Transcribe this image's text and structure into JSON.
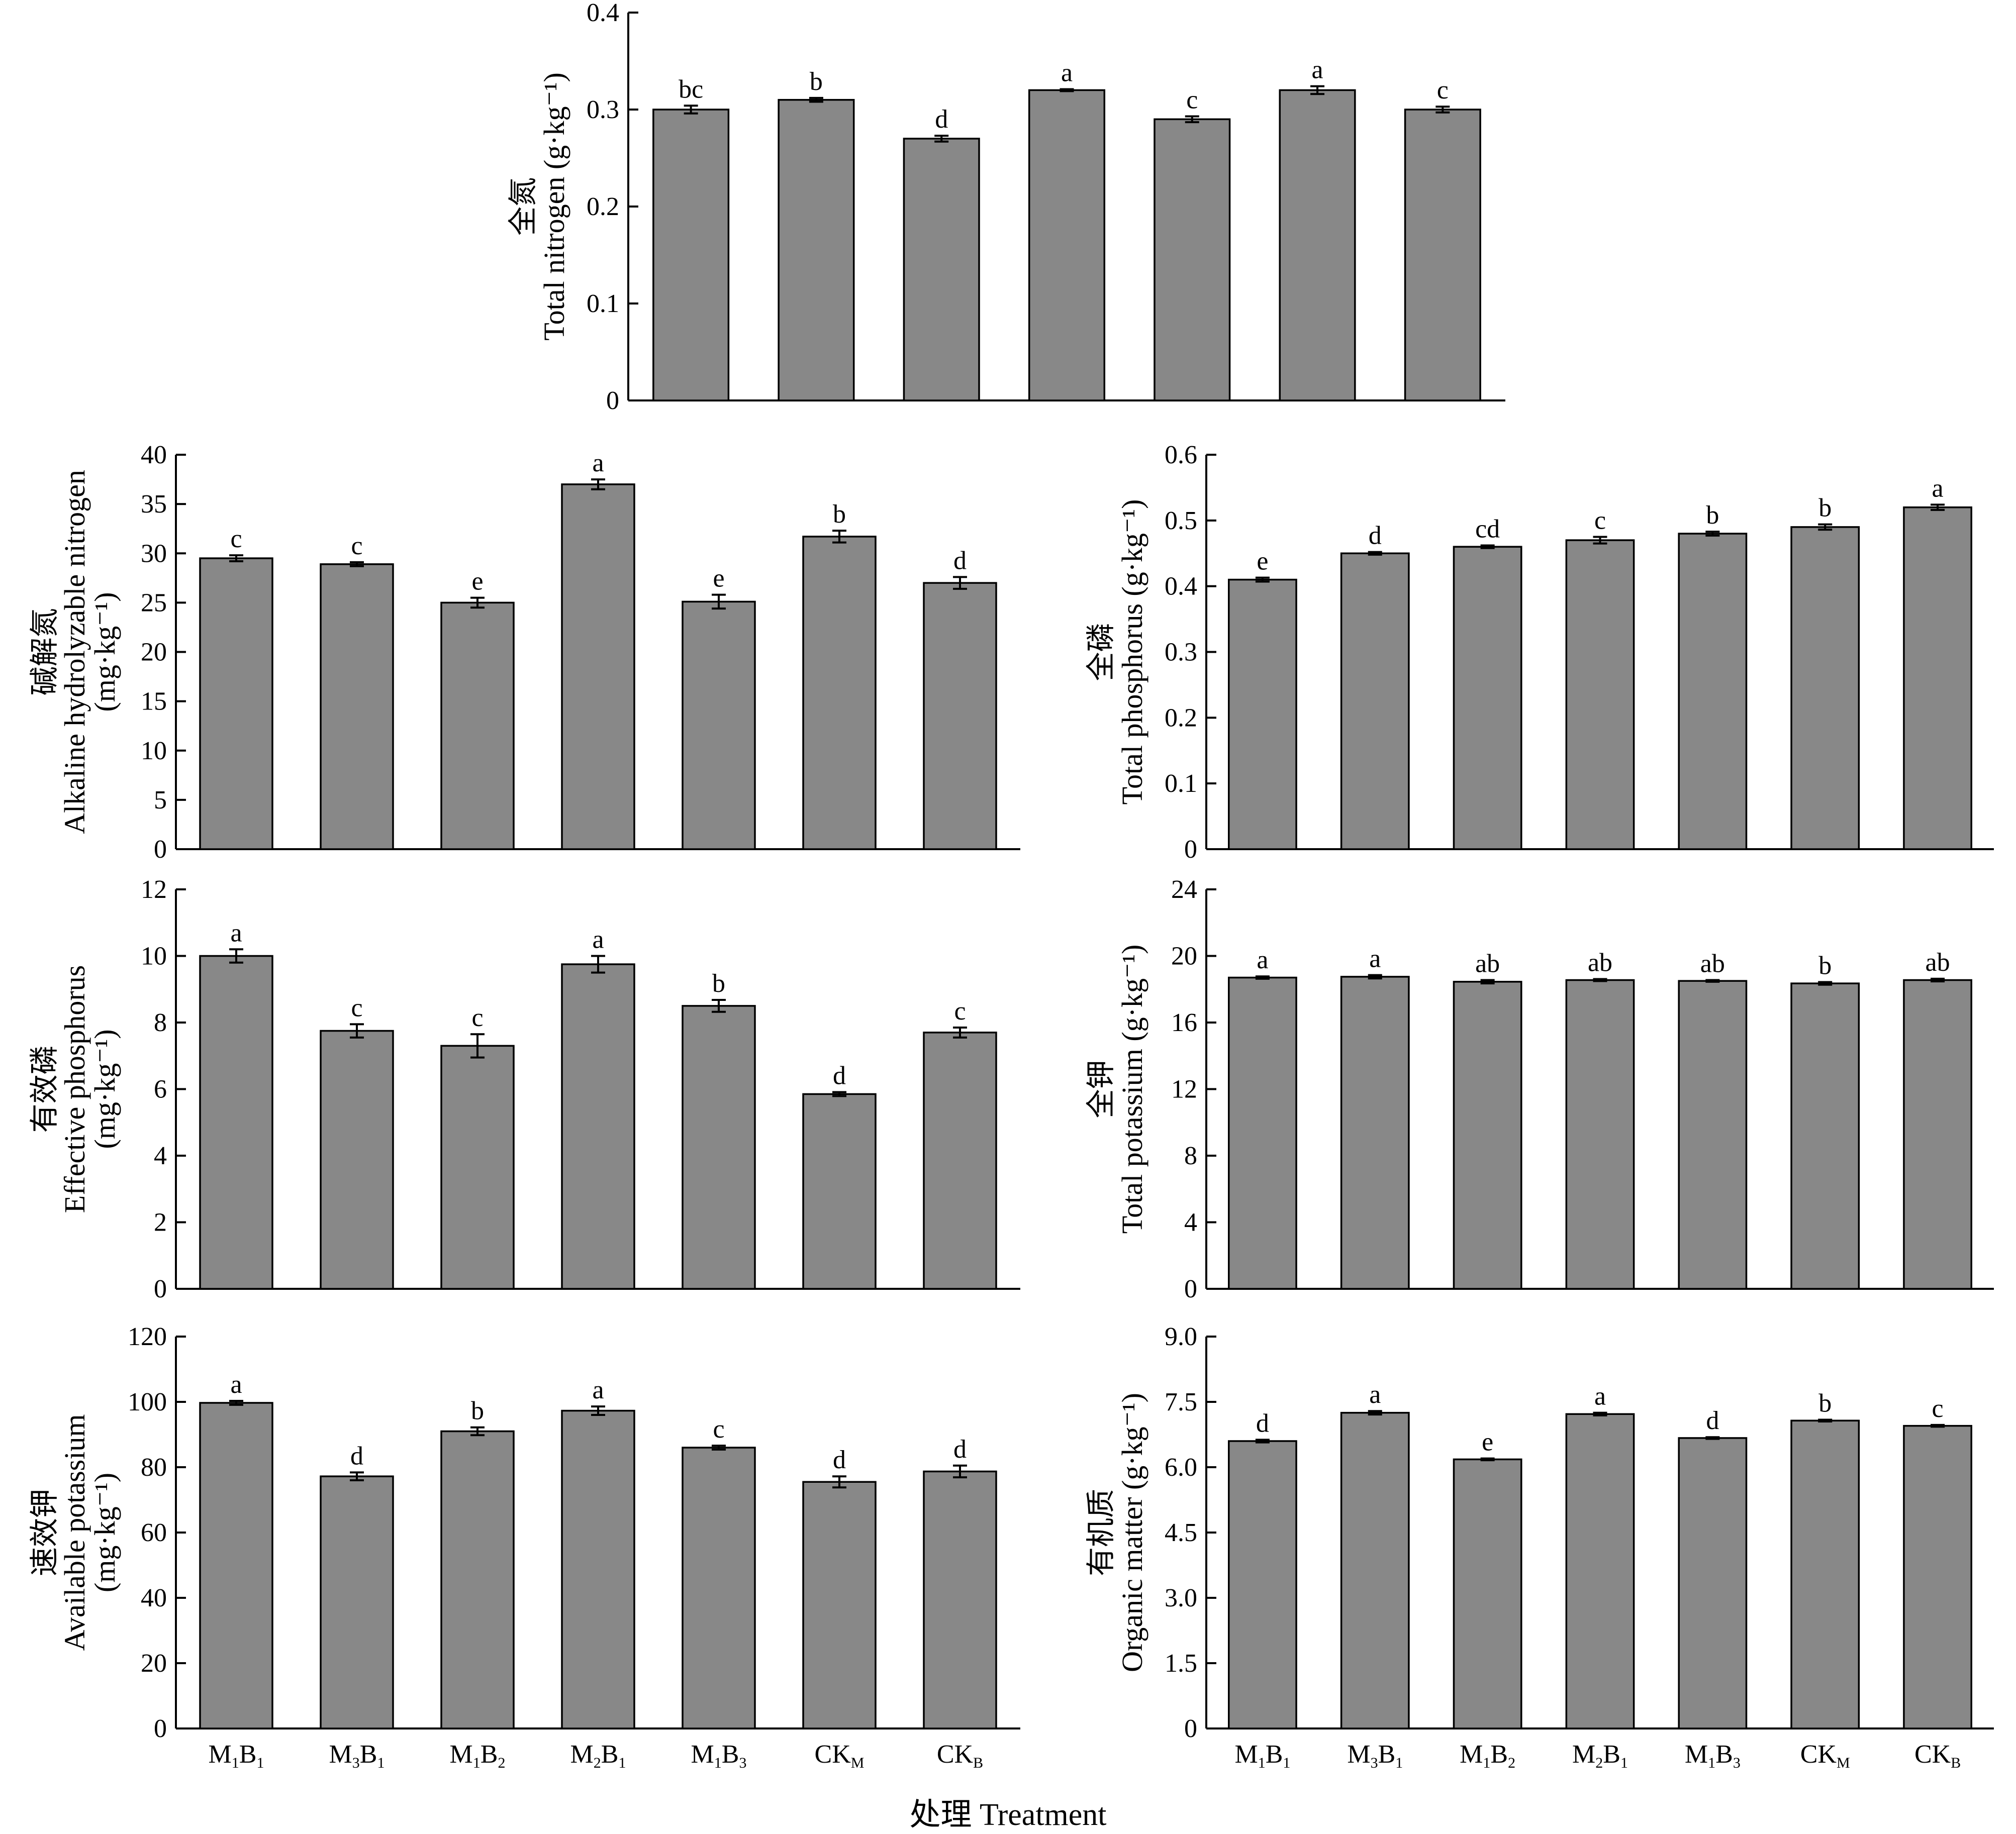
{
  "figure": {
    "shared_xlabel": "处理 Treatment"
  },
  "chart_data": [
    {
      "type": "bar",
      "ylabel_cn": "全氮",
      "ylabel_en": "Total nitrogen (g·kg⁻¹)",
      "categories": [
        "M1B1",
        "M3B1",
        "M1B2",
        "M2B1",
        "M1B3",
        "CKM",
        "CKB"
      ],
      "values": [
        0.3,
        0.31,
        0.27,
        0.32,
        0.29,
        0.32,
        0.3
      ],
      "errors": [
        0.004,
        0.002,
        0.003,
        0.001,
        0.003,
        0.004,
        0.003
      ],
      "significance": [
        "bc",
        "b",
        "d",
        "a",
        "c",
        "a",
        "c"
      ],
      "ylim": [
        0,
        0.4
      ],
      "yticks": [
        "0",
        "0.1",
        "0.2",
        "0.3",
        "0.4"
      ],
      "show_xlabels": false
    },
    {
      "type": "bar",
      "ylabel_cn": "碱解氮",
      "ylabel_en": "Alkaline hydrolyzable nitrogen",
      "ylabel_unit": "(mg·kg⁻¹)",
      "categories": [
        "M1B1",
        "M3B1",
        "M1B2",
        "M2B1",
        "M1B3",
        "CKM",
        "CKB"
      ],
      "values": [
        29.5,
        28.9,
        25.0,
        37.0,
        25.1,
        31.7,
        27.0
      ],
      "errors": [
        0.3,
        0.2,
        0.5,
        0.5,
        0.7,
        0.6,
        0.6
      ],
      "significance": [
        "c",
        "c",
        "e",
        "a",
        "e",
        "b",
        "d"
      ],
      "ylim": [
        0,
        40
      ],
      "yticks": [
        "0",
        "5",
        "10",
        "15",
        "20",
        "25",
        "30",
        "35",
        "40"
      ],
      "show_xlabels": false
    },
    {
      "type": "bar",
      "ylabel_cn": "全磷",
      "ylabel_en": "Total phosphorus (g·kg⁻¹)",
      "categories": [
        "M1B1",
        "M3B1",
        "M1B2",
        "M2B1",
        "M1B3",
        "CKM",
        "CKB"
      ],
      "values": [
        0.41,
        0.45,
        0.46,
        0.47,
        0.48,
        0.49,
        0.52
      ],
      "errors": [
        0.003,
        0.002,
        0.002,
        0.005,
        0.003,
        0.004,
        0.004
      ],
      "significance": [
        "e",
        "d",
        "cd",
        "c",
        "b",
        "b",
        "a"
      ],
      "ylim": [
        0,
        0.6
      ],
      "yticks": [
        "0",
        "0.1",
        "0.2",
        "0.3",
        "0.4",
        "0.5",
        "0.6"
      ],
      "show_xlabels": false
    },
    {
      "type": "bar",
      "ylabel_cn": "有效磷",
      "ylabel_en": "Effective phosphorus",
      "ylabel_unit": "(mg·kg⁻¹)",
      "categories": [
        "M1B1",
        "M3B1",
        "M1B2",
        "M2B1",
        "M1B3",
        "CKM",
        "CKB"
      ],
      "values": [
        10.0,
        7.75,
        7.3,
        9.75,
        8.5,
        5.85,
        7.7
      ],
      "errors": [
        0.2,
        0.2,
        0.35,
        0.25,
        0.18,
        0.06,
        0.15
      ],
      "significance": [
        "a",
        "c",
        "c",
        "a",
        "b",
        "d",
        "c"
      ],
      "ylim": [
        0,
        12
      ],
      "yticks": [
        "0",
        "2",
        "4",
        "6",
        "8",
        "10",
        "12"
      ],
      "show_xlabels": false
    },
    {
      "type": "bar",
      "ylabel_cn": "全钾",
      "ylabel_en": "Total potassium (g·kg⁻¹)",
      "categories": [
        "M1B1",
        "M3B1",
        "M1B2",
        "M2B1",
        "M1B3",
        "CKM",
        "CKB"
      ],
      "values": [
        18.7,
        18.75,
        18.45,
        18.55,
        18.5,
        18.35,
        18.55
      ],
      "errors": [
        0.07,
        0.1,
        0.1,
        0.06,
        0.05,
        0.08,
        0.08
      ],
      "significance": [
        "a",
        "a",
        "ab",
        "ab",
        "ab",
        "b",
        "ab"
      ],
      "ylim": [
        0,
        24
      ],
      "yticks": [
        "0",
        "4",
        "8",
        "12",
        "16",
        "20",
        "24"
      ],
      "show_xlabels": false
    },
    {
      "type": "bar",
      "ylabel_cn": "速效钾",
      "ylabel_en": "Available potassium",
      "ylabel_unit": "(mg·kg⁻¹)",
      "categories": [
        "M1B1",
        "M3B1",
        "M1B2",
        "M2B1",
        "M1B3",
        "CKM",
        "CKB"
      ],
      "values": [
        99.7,
        77.2,
        91.0,
        97.3,
        86.0,
        75.5,
        78.7
      ],
      "errors": [
        0.6,
        1.2,
        1.2,
        1.3,
        0.6,
        1.7,
        1.8
      ],
      "significance": [
        "a",
        "d",
        "b",
        "a",
        "c",
        "d",
        "d"
      ],
      "ylim": [
        0,
        120
      ],
      "yticks": [
        "0",
        "20",
        "40",
        "60",
        "80",
        "100",
        "120"
      ],
      "show_xlabels": true
    },
    {
      "type": "bar",
      "ylabel_cn": "有机质",
      "ylabel_en": "Organic matter (g·kg⁻¹)",
      "categories": [
        "M1B1",
        "M3B1",
        "M1B2",
        "M2B1",
        "M1B3",
        "CKM",
        "CKB"
      ],
      "values": [
        6.6,
        7.25,
        6.18,
        7.22,
        6.67,
        7.07,
        6.95
      ],
      "errors": [
        0.03,
        0.04,
        0.02,
        0.03,
        0.02,
        0.02,
        0.02
      ],
      "significance": [
        "d",
        "a",
        "e",
        "a",
        "d",
        "b",
        "c"
      ],
      "ylim": [
        0,
        9
      ],
      "yticks": [
        "0",
        "1.5",
        "3.0",
        "4.5",
        "6.0",
        "7.5",
        "9.0"
      ],
      "show_xlabels": true
    }
  ],
  "x_tick_labels": [
    {
      "base1": "M",
      "sub1": "1",
      "base2": "B",
      "sub2": "1"
    },
    {
      "base1": "M",
      "sub1": "3",
      "base2": "B",
      "sub2": "1"
    },
    {
      "base1": "M",
      "sub1": "1",
      "base2": "B",
      "sub2": "2"
    },
    {
      "base1": "M",
      "sub1": "2",
      "base2": "B",
      "sub2": "1"
    },
    {
      "base1": "M",
      "sub1": "1",
      "base2": "B",
      "sub2": "3"
    },
    {
      "base1": "CK",
      "sub1": "M",
      "base2": "",
      "sub2": ""
    },
    {
      "base1": "CK",
      "sub1": "B",
      "base2": "",
      "sub2": ""
    }
  ]
}
